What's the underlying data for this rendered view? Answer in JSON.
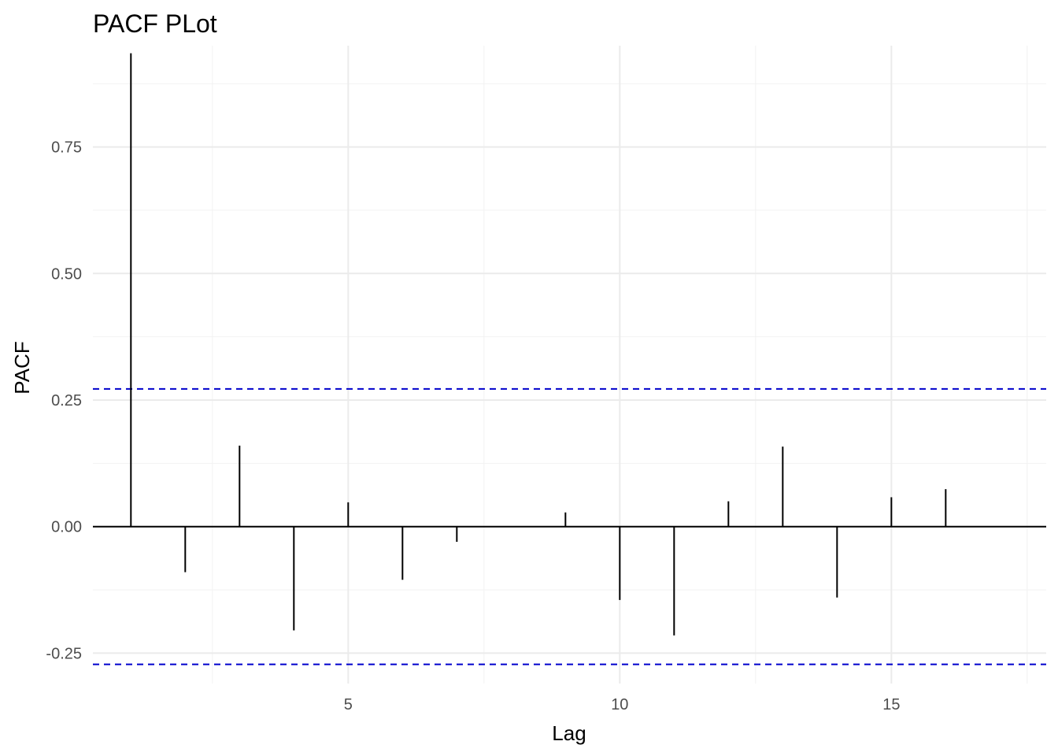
{
  "chart_data": {
    "type": "bar",
    "title": "PACF PLot",
    "xlabel": "Lag",
    "ylabel": "PACF",
    "xlim": [
      0.3,
      17.85
    ],
    "ylim": [
      -0.31,
      0.95
    ],
    "x_ticks": [
      5,
      10,
      15
    ],
    "x_tick_labels": [
      "5",
      "10",
      "15"
    ],
    "y_ticks": [
      -0.25,
      0,
      0.25,
      0.5,
      0.75
    ],
    "y_tick_labels": [
      "-0.25",
      "0.00",
      "0.25",
      "0.50",
      "0.75"
    ],
    "y_minor_ticks": [
      -0.125,
      0.125,
      0.375,
      0.625,
      0.875
    ],
    "x_minor_ticks": [
      2.5,
      7.5,
      12.5,
      17.5
    ],
    "grid": true,
    "lags": [
      1,
      2,
      3,
      4,
      5,
      6,
      7,
      8,
      9,
      10,
      11,
      12,
      13,
      14,
      15,
      16
    ],
    "values": [
      0.935,
      -0.09,
      0.16,
      -0.205,
      0.048,
      -0.105,
      -0.03,
      0.0,
      0.028,
      -0.145,
      -0.215,
      0.05,
      0.158,
      -0.14,
      0.058,
      0.074
    ],
    "confidence_bound": 0.272,
    "colors": {
      "spike": "#000000",
      "confidence": "#0000cc",
      "zero_line": "#000000"
    }
  }
}
